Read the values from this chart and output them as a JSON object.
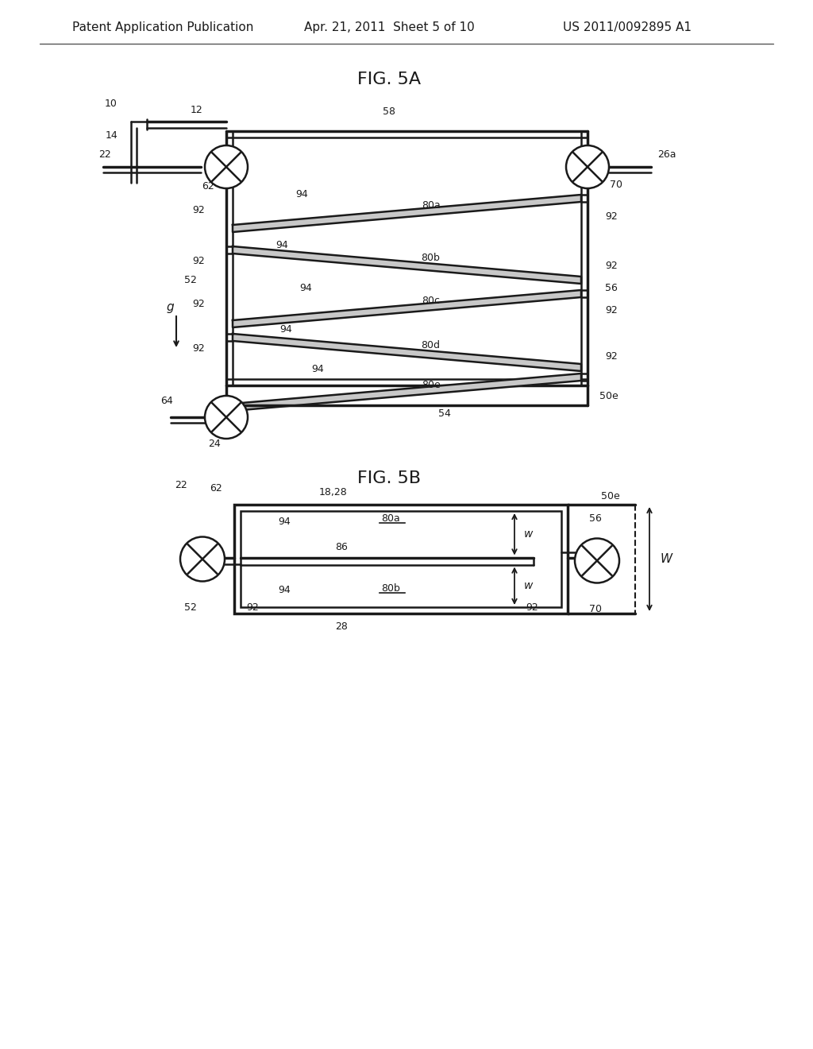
{
  "bg_color": "#ffffff",
  "header_text1": "Patent Application Publication",
  "header_text2": "Apr. 21, 2011  Sheet 5 of 10",
  "header_text3": "US 2011/0092895 A1",
  "fig5a_title": "FIG. 5A",
  "fig5b_title": "FIG. 5B",
  "line_color": "#1a1a1a",
  "line_width": 1.8,
  "thick_line": 2.5
}
